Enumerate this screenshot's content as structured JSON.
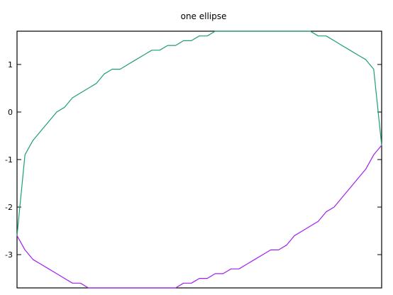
{
  "chart_data": {
    "type": "line",
    "title": "one ellipse",
    "xlabel": "",
    "ylabel": "",
    "grid": false,
    "legend": "none",
    "xlim": [
      0,
      46
    ],
    "ylim": [
      -3.7,
      1.7
    ],
    "yticks": [
      1,
      0,
      -1,
      -2,
      -3
    ],
    "ytick_labels": [
      "1",
      "0",
      "-1",
      "-2",
      "-3"
    ],
    "series": [
      {
        "color": "#1e9e78",
        "points": [
          [
            0,
            -2.6
          ],
          [
            1,
            -0.9
          ],
          [
            2,
            -0.6
          ],
          [
            3,
            -0.4
          ],
          [
            4,
            -0.2
          ],
          [
            5,
            0.0
          ],
          [
            6,
            0.1
          ],
          [
            7,
            0.3
          ],
          [
            8,
            0.4
          ],
          [
            9,
            0.5
          ],
          [
            10,
            0.6
          ],
          [
            11,
            0.8
          ],
          [
            12,
            0.9
          ],
          [
            13,
            0.9
          ],
          [
            14,
            1.0
          ],
          [
            15,
            1.1
          ],
          [
            16,
            1.2
          ],
          [
            17,
            1.3
          ],
          [
            18,
            1.3
          ],
          [
            19,
            1.4
          ],
          [
            20,
            1.4
          ],
          [
            21,
            1.5
          ],
          [
            22,
            1.5
          ],
          [
            23,
            1.6
          ],
          [
            24,
            1.6
          ],
          [
            25,
            1.7
          ],
          [
            26,
            1.7
          ],
          [
            27,
            1.7
          ],
          [
            28,
            1.7
          ],
          [
            29,
            1.7
          ],
          [
            30,
            1.7
          ],
          [
            31,
            1.7
          ],
          [
            32,
            1.7
          ],
          [
            33,
            1.7
          ],
          [
            34,
            1.7
          ],
          [
            35,
            1.7
          ],
          [
            36,
            1.7
          ],
          [
            37,
            1.7
          ],
          [
            38,
            1.6
          ],
          [
            39,
            1.6
          ],
          [
            40,
            1.5
          ],
          [
            41,
            1.4
          ],
          [
            42,
            1.3
          ],
          [
            43,
            1.2
          ],
          [
            44,
            1.1
          ],
          [
            45,
            0.9
          ],
          [
            46,
            -0.7
          ]
        ]
      },
      {
        "color": "#a020f0",
        "points": [
          [
            0,
            -2.6
          ],
          [
            1,
            -2.9
          ],
          [
            2,
            -3.1
          ],
          [
            3,
            -3.2
          ],
          [
            4,
            -3.3
          ],
          [
            5,
            -3.4
          ],
          [
            6,
            -3.5
          ],
          [
            7,
            -3.6
          ],
          [
            8,
            -3.6
          ],
          [
            9,
            -3.7
          ],
          [
            10,
            -3.7
          ],
          [
            11,
            -3.7
          ],
          [
            12,
            -3.7
          ],
          [
            13,
            -3.7
          ],
          [
            14,
            -3.7
          ],
          [
            15,
            -3.7
          ],
          [
            16,
            -3.7
          ],
          [
            17,
            -3.7
          ],
          [
            18,
            -3.7
          ],
          [
            19,
            -3.7
          ],
          [
            20,
            -3.7
          ],
          [
            21,
            -3.6
          ],
          [
            22,
            -3.6
          ],
          [
            23,
            -3.5
          ],
          [
            24,
            -3.5
          ],
          [
            25,
            -3.4
          ],
          [
            26,
            -3.4
          ],
          [
            27,
            -3.3
          ],
          [
            28,
            -3.3
          ],
          [
            29,
            -3.2
          ],
          [
            30,
            -3.1
          ],
          [
            31,
            -3.0
          ],
          [
            32,
            -2.9
          ],
          [
            33,
            -2.9
          ],
          [
            34,
            -2.8
          ],
          [
            35,
            -2.6
          ],
          [
            36,
            -2.5
          ],
          [
            37,
            -2.4
          ],
          [
            38,
            -2.3
          ],
          [
            39,
            -2.1
          ],
          [
            40,
            -2.0
          ],
          [
            41,
            -1.8
          ],
          [
            42,
            -1.6
          ],
          [
            43,
            -1.4
          ],
          [
            44,
            -1.2
          ],
          [
            45,
            -0.9
          ],
          [
            46,
            -0.7
          ]
        ]
      }
    ]
  }
}
